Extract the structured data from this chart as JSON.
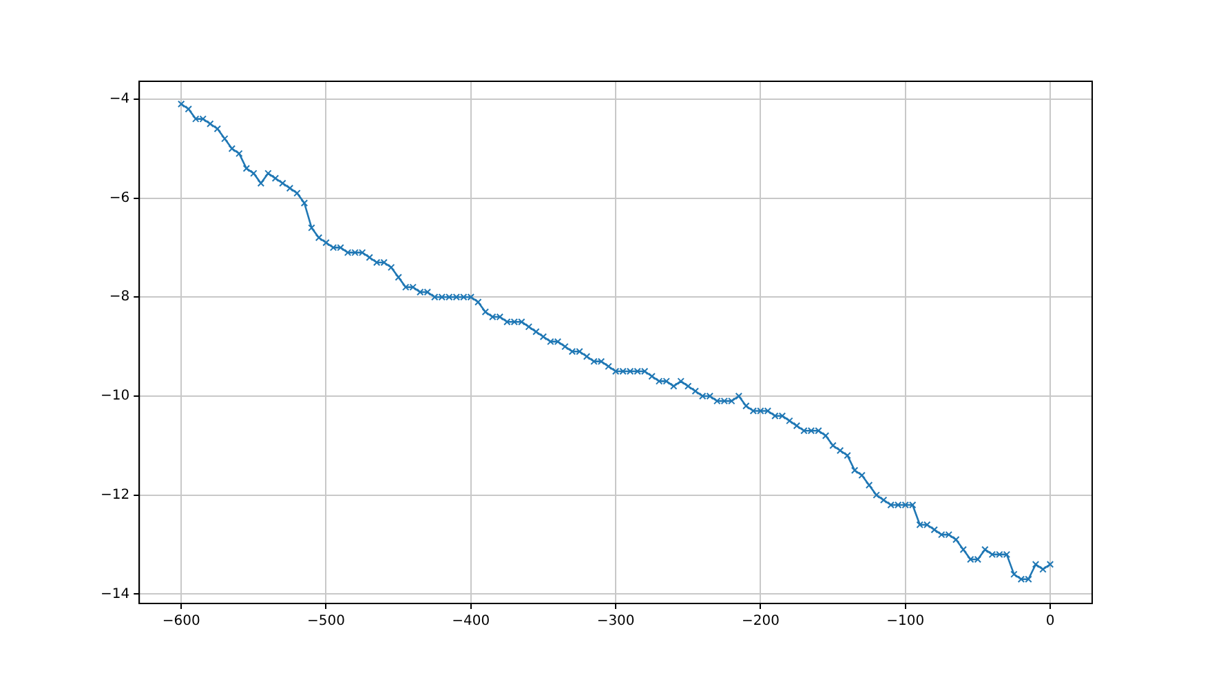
{
  "chart_data": {
    "type": "line",
    "x": [
      -600,
      -595,
      -590,
      -585,
      -580,
      -575,
      -570,
      -565,
      -560,
      -555,
      -550,
      -545,
      -540,
      -535,
      -530,
      -525,
      -520,
      -515,
      -510,
      -505,
      -500,
      -495,
      -490,
      -485,
      -480,
      -475,
      -470,
      -465,
      -460,
      -455,
      -450,
      -445,
      -440,
      -435,
      -430,
      -425,
      -420,
      -415,
      -410,
      -405,
      -400,
      -395,
      -390,
      -385,
      -380,
      -375,
      -370,
      -365,
      -360,
      -355,
      -350,
      -345,
      -340,
      -335,
      -330,
      -325,
      -320,
      -315,
      -310,
      -305,
      -300,
      -295,
      -290,
      -285,
      -280,
      -275,
      -270,
      -265,
      -260,
      -255,
      -250,
      -245,
      -240,
      -235,
      -230,
      -225,
      -220,
      -215,
      -210,
      -205,
      -200,
      -195,
      -190,
      -185,
      -180,
      -175,
      -170,
      -165,
      -160,
      -155,
      -150,
      -145,
      -140,
      -135,
      -130,
      -125,
      -120,
      -115,
      -110,
      -105,
      -100,
      -95,
      -90,
      -85,
      -80,
      -75,
      -70,
      -65,
      -60,
      -55,
      -50,
      -45,
      -40,
      -35,
      -30,
      -25,
      -20,
      -15,
      -10,
      -5,
      0
    ],
    "series": [
      {
        "color": "#1f77b4",
        "values": [
          -4.1,
          -4.2,
          -4.4,
          -4.4,
          -4.5,
          -4.6,
          -4.8,
          -5.0,
          -5.1,
          -5.4,
          -5.5,
          -5.7,
          -5.5,
          -5.6,
          -5.7,
          -5.8,
          -5.9,
          -6.1,
          -6.6,
          -6.8,
          -6.9,
          -7.0,
          -7.0,
          -7.1,
          -7.1,
          -7.1,
          -7.2,
          -7.3,
          -7.3,
          -7.4,
          -7.6,
          -7.8,
          -7.8,
          -7.9,
          -7.9,
          -8.0,
          -8.0,
          -8.0,
          -8.0,
          -8.0,
          -8.0,
          -8.1,
          -8.3,
          -8.4,
          -8.4,
          -8.5,
          -8.5,
          -8.5,
          -8.6,
          -8.7,
          -8.8,
          -8.9,
          -8.9,
          -9.0,
          -9.1,
          -9.1,
          -9.2,
          -9.3,
          -9.3,
          -9.4,
          -9.5,
          -9.5,
          -9.5,
          -9.5,
          -9.5,
          -9.6,
          -9.7,
          -9.7,
          -9.8,
          -9.7,
          -9.8,
          -9.9,
          -10.0,
          -10.0,
          -10.1,
          -10.1,
          -10.1,
          -10.0,
          -10.2,
          -10.3,
          -10.3,
          -10.3,
          -10.4,
          -10.4,
          -10.5,
          -10.6,
          -10.7,
          -10.7,
          -10.7,
          -10.8,
          -11.0,
          -11.1,
          -11.2,
          -11.5,
          -11.6,
          -11.8,
          -12.0,
          -12.1,
          -12.2,
          -12.2,
          -12.2,
          -12.2,
          -12.6,
          -12.6,
          -12.7,
          -12.8,
          -12.8,
          -12.9,
          -13.1,
          -13.3,
          -13.3,
          -13.1,
          -13.2,
          -13.2,
          -13.2,
          -13.6,
          -13.7,
          -13.7,
          -13.4,
          -13.5,
          -13.4
        ]
      }
    ],
    "xlim": [
      -629,
      29
    ],
    "xticks": [
      -600,
      -500,
      -400,
      -300,
      -200,
      -100,
      0
    ],
    "ylim": [
      -14.19,
      -3.64
    ],
    "yticks": [
      -14,
      -12,
      -10,
      -8,
      -6,
      -4
    ],
    "grid": true,
    "marker": "cross",
    "line_style": "solid"
  }
}
